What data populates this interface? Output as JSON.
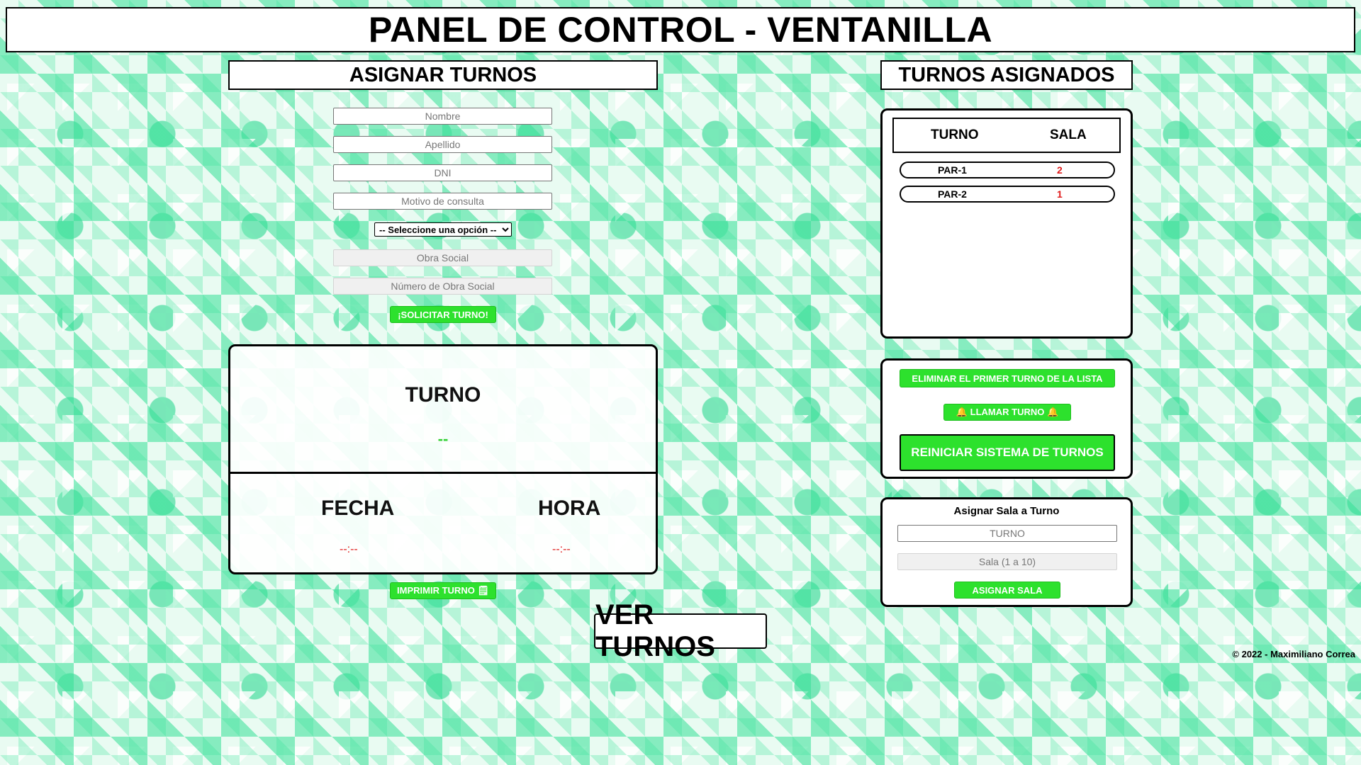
{
  "header": {
    "title": "PANEL DE CONTROL - VENTANILLA"
  },
  "assign": {
    "title": "ASIGNAR TURNOS",
    "fields": {
      "nombre": "Nombre",
      "apellido": "Apellido",
      "dni": "DNI",
      "motivo": "Motivo de consulta",
      "obra_social": "Obra Social",
      "numero_obra_social": "Número de Obra Social"
    },
    "select_selected": "-- Seleccione una opción --",
    "request_button": "¡SOLICITAR TURNO!"
  },
  "ticket": {
    "turno_label": "TURNO",
    "turno_value": "--",
    "fecha_label": "FECHA",
    "fecha_value": "--:--",
    "hora_label": "HORA",
    "hora_value": "--:--"
  },
  "print_button": "IMPRIMIR TURNO 🗒",
  "assigned": {
    "title": "TURNOS ASIGNADOS",
    "col_turno": "TURNO",
    "col_sala": "SALA",
    "rows": [
      {
        "turno": "PAR-1",
        "sala": "2"
      },
      {
        "turno": "PAR-2",
        "sala": "1"
      }
    ]
  },
  "actions": {
    "delete_first": "ELIMINAR EL PRIMER TURNO DE LA LISTA",
    "call": "🔔 LLAMAR TURNO 🔔",
    "reset": "REINICIAR SISTEMA DE TURNOS"
  },
  "sala": {
    "title": "Asignar Sala a Turno",
    "turno_placeholder": "TURNO",
    "sala_placeholder": "Sala (1 a 10)",
    "button": "ASIGNAR SALA"
  },
  "ver_turnos": "VER TURNOS",
  "footer": "© 2022 - Maximiliano Correa",
  "colors": {
    "accent": "#2de12d",
    "danger": "#e01b1b"
  }
}
